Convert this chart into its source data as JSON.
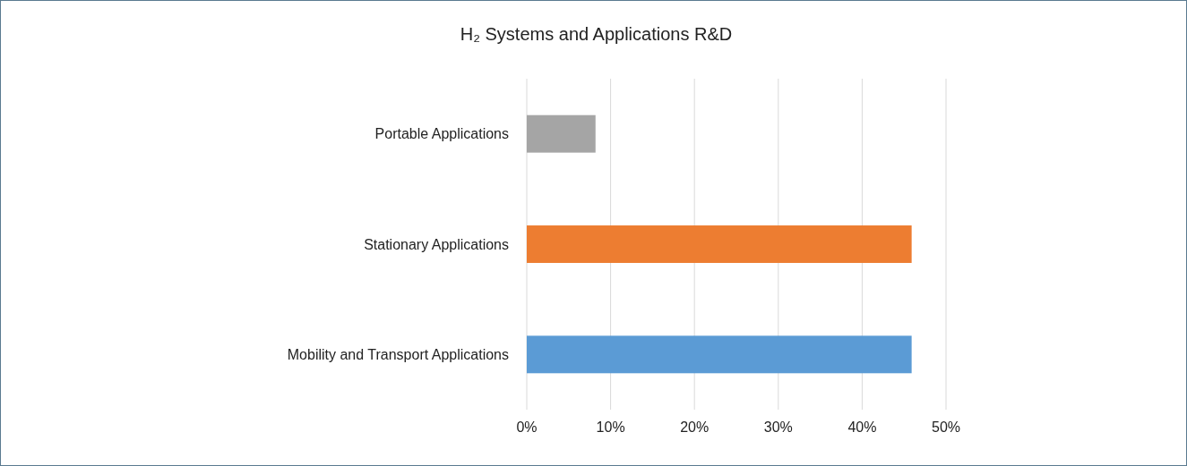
{
  "chart_data": {
    "type": "bar",
    "orientation": "horizontal",
    "title": "H₂ Systems and Applications R&D",
    "categories": [
      "Portable Applications",
      "Stationary Applications",
      "Mobility and Transport Applications"
    ],
    "values": [
      8.2,
      45.9,
      45.9
    ],
    "colors": [
      "#a5a5a5",
      "#ed7d31",
      "#5b9bd5"
    ],
    "xlim": [
      0,
      50
    ],
    "xticks": [
      {
        "value": 0,
        "label": "0%"
      },
      {
        "value": 10,
        "label": "10%"
      },
      {
        "value": 20,
        "label": "20%"
      },
      {
        "value": 30,
        "label": "30%"
      },
      {
        "value": 40,
        "label": "40%"
      },
      {
        "value": 50,
        "label": "50%"
      }
    ],
    "grid": "x"
  }
}
